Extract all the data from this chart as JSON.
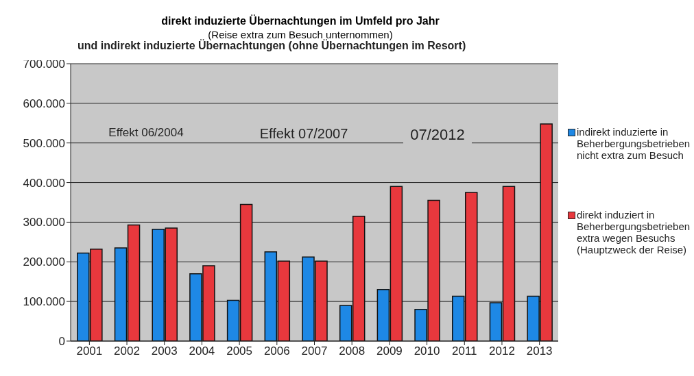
{
  "chart_data": {
    "type": "bar",
    "title": "direkt induzierte Übernachtungen im Umfeld pro Jahr",
    "subtitle": "(Reise extra zum Besuch unternommen)",
    "annotations": [
      "und indirekt induzierte Übernachtungen (ohne Übernachtungen im Resort)",
      "Effekt 06/2004",
      "Effekt 07/2007",
      "07/2012"
    ],
    "categories": [
      "2001",
      "2002",
      "2003",
      "2004",
      "2005",
      "2006",
      "2007",
      "2008",
      "2009",
      "2010",
      "2011",
      "2012",
      "2013"
    ],
    "series": [
      {
        "name": "indirekt induzierte in Beherbergungsbetrieben nicht extra zum Besuch",
        "color": "#1e88e5",
        "values": [
          222000,
          235000,
          282000,
          170000,
          103000,
          225000,
          212000,
          90000,
          130000,
          80000,
          113000,
          97000,
          113000
        ]
      },
      {
        "name": "direkt induziert in Beherbergungsbetrieben extra wegen Besuchs (Hauptzweck der Reise)",
        "color": "#e8383d",
        "values": [
          232000,
          293000,
          285000,
          190000,
          345000,
          202000,
          202000,
          315000,
          390000,
          355000,
          375000,
          390000,
          548000
        ]
      }
    ],
    "ylim": [
      0,
      700000
    ],
    "yticks": [
      {
        "value": 0,
        "label": "0"
      },
      {
        "value": 100000,
        "label": "100.000"
      },
      {
        "value": 200000,
        "label": "200.000"
      },
      {
        "value": 300000,
        "label": "300.000"
      },
      {
        "value": 400000,
        "label": "400.000"
      },
      {
        "value": 500000,
        "label": "500.000"
      },
      {
        "value": 600000,
        "label": "600.000"
      },
      {
        "value": 700000,
        "label": "700.000"
      }
    ],
    "grid": "y",
    "legend": "right"
  }
}
